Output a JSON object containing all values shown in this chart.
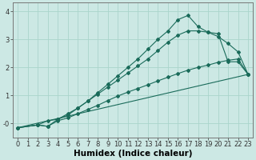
{
  "title": "",
  "xlabel": "Humidex (Indice chaleur)",
  "bg_color": "#cce8e4",
  "grid_color": "#aad4cc",
  "line_color": "#1a6b5a",
  "marker_color": "#1a6b5a",
  "xlim": [
    -0.5,
    23.5
  ],
  "ylim": [
    -0.5,
    4.3
  ],
  "yticks": [
    0,
    1,
    2,
    3,
    4
  ],
  "ytick_labels": [
    "-0",
    "1",
    "2",
    "3",
    "4"
  ],
  "xticks": [
    0,
    1,
    2,
    3,
    4,
    5,
    6,
    7,
    8,
    9,
    10,
    11,
    12,
    13,
    14,
    15,
    16,
    17,
    18,
    19,
    20,
    21,
    22,
    23
  ],
  "line1_x": [
    0,
    1,
    2,
    3,
    4,
    5,
    6,
    7,
    8,
    9,
    10,
    11,
    12,
    13,
    14,
    15,
    16,
    17,
    18,
    19,
    20,
    21,
    22,
    23
  ],
  "line1_y": [
    -0.15,
    null,
    null,
    null,
    null,
    null,
    null,
    null,
    null,
    null,
    null,
    null,
    null,
    null,
    null,
    null,
    null,
    null,
    null,
    null,
    null,
    null,
    null,
    1.75
  ],
  "line2_x": [
    0,
    2,
    3,
    4,
    5,
    6,
    7,
    8,
    9,
    10,
    11,
    12,
    13,
    14,
    15,
    16,
    17,
    18,
    19,
    20,
    21,
    22,
    23
  ],
  "line2_y": [
    -0.15,
    -0.05,
    -0.1,
    0.1,
    0.2,
    0.35,
    0.5,
    0.65,
    0.82,
    0.98,
    1.12,
    1.25,
    1.38,
    1.52,
    1.65,
    1.78,
    1.9,
    2.0,
    2.08,
    2.18,
    2.25,
    2.3,
    1.75
  ],
  "line3_x": [
    0,
    2,
    3,
    4,
    5,
    6,
    7,
    8,
    9,
    10,
    11,
    12,
    13,
    14,
    15,
    16,
    17,
    18,
    19,
    20,
    21,
    22,
    23
  ],
  "line3_y": [
    -0.15,
    -0.05,
    0.1,
    0.15,
    0.35,
    0.55,
    0.8,
    1.05,
    1.3,
    1.55,
    1.8,
    2.05,
    2.3,
    2.6,
    2.9,
    3.15,
    3.3,
    3.3,
    3.25,
    3.2,
    2.2,
    2.2,
    1.75
  ],
  "line4_x": [
    0,
    2,
    3,
    4,
    5,
    6,
    7,
    8,
    9,
    10,
    11,
    12,
    13,
    14,
    15,
    16,
    17,
    18,
    19,
    20,
    21,
    22,
    23
  ],
  "line4_y": [
    -0.15,
    -0.05,
    -0.1,
    0.15,
    0.3,
    0.55,
    0.8,
    1.1,
    1.4,
    1.7,
    2.0,
    2.3,
    2.65,
    3.0,
    3.3,
    3.7,
    3.85,
    3.45,
    3.25,
    3.1,
    2.85,
    2.55,
    1.75
  ],
  "xlabel_fontsize": 7.5,
  "tick_fontsize": 6
}
